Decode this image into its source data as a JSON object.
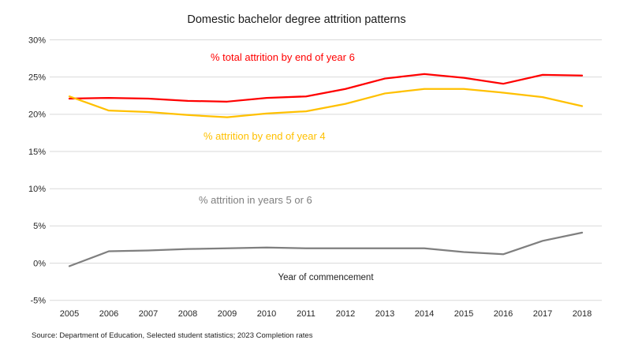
{
  "source": "Source: Department of Education, Selected student statistics; 2023 Completion rates",
  "colors": {
    "background": "#ffffff",
    "gridline": "#d9d9d9",
    "axis_text": "#262626",
    "title_text": "#1a1a1a",
    "red_series": "#ff0000",
    "gold_series": "#ffc000",
    "gray_series": "#7f7f7f"
  },
  "chart_data": {
    "type": "line",
    "title": "Domestic bachelor degree attrition patterns",
    "xlabel": "Year of commencement",
    "ylabel": "",
    "categories": [
      2005,
      2006,
      2007,
      2008,
      2009,
      2010,
      2011,
      2012,
      2013,
      2014,
      2015,
      2016,
      2017,
      2018
    ],
    "series": [
      {
        "name": "% total attrition by end of year 6",
        "color": "#ff0000",
        "values": [
          22.1,
          22.2,
          22.1,
          21.8,
          21.7,
          22.2,
          22.4,
          23.4,
          24.8,
          25.4,
          24.9,
          24.1,
          25.3,
          25.2
        ]
      },
      {
        "name": "% attrition by end of year 4",
        "color": "#ffc000",
        "values": [
          22.4,
          20.5,
          20.3,
          19.9,
          19.6,
          20.1,
          20.4,
          21.4,
          22.8,
          23.4,
          23.4,
          22.9,
          22.3,
          21.1
        ]
      },
      {
        "name": "% attrition in years 5 or 6",
        "color": "#7f7f7f",
        "values": [
          -0.4,
          1.6,
          1.7,
          1.9,
          2.0,
          2.1,
          2.0,
          2.0,
          2.0,
          2.0,
          1.5,
          1.2,
          3.0,
          4.1
        ]
      }
    ],
    "ylim": [
      -5,
      30
    ],
    "ytick_step": 5,
    "ytick_suffix": "%",
    "grid": true,
    "legend_position": "inline-colored-labels"
  }
}
